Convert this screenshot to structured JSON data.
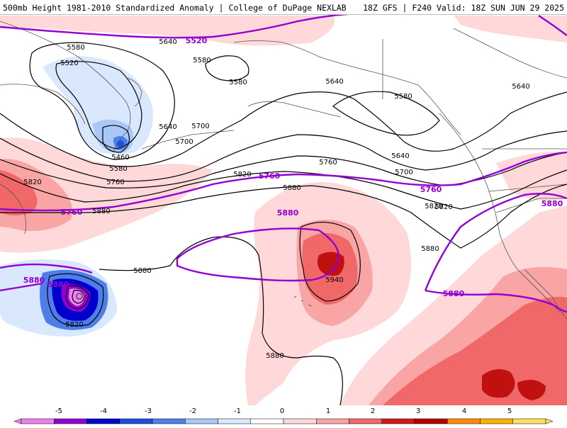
{
  "header": {
    "left": "500mb Height 1981-2010 Standardized Anomaly | College of DuPage NEXLAB",
    "right": "18Z GFS | F240 Valid: 18Z SUN JUN 29 2025"
  },
  "map": {
    "black_contour_labels": [
      "5580",
      "5520",
      "5460",
      "5580",
      "5640",
      "5700",
      "5760",
      "5580",
      "5640",
      "5580",
      "5640",
      "5700",
      "5760",
      "5820",
      "5880",
      "5640",
      "5580",
      "5640",
      "5700",
      "5820",
      "5880",
      "5880",
      "5820",
      "5880",
      "5940",
      "5880",
      "5820",
      "5820"
    ],
    "purple_contour_labels": [
      "5520",
      "5760",
      "5760",
      "5760",
      "5880",
      "5880",
      "5880",
      "5880",
      "5880"
    ],
    "purple_color": "#9400d3"
  },
  "legend": {
    "ticks": [
      "-5",
      "-4",
      "-3",
      "-2",
      "-1",
      "0",
      "1",
      "2",
      "3",
      "4",
      "5"
    ],
    "colors": [
      "#ee82ee",
      "#9400d3",
      "#0000cd",
      "#1e50dc",
      "#4e7eea",
      "#a9c7f7",
      "#d9e8fc",
      "#ffffff",
      "#ffd9d9",
      "#f9a5a5",
      "#f06868",
      "#d11a1a",
      "#b30000",
      "#ff8c00",
      "#ffb000",
      "#ffe060"
    ]
  }
}
